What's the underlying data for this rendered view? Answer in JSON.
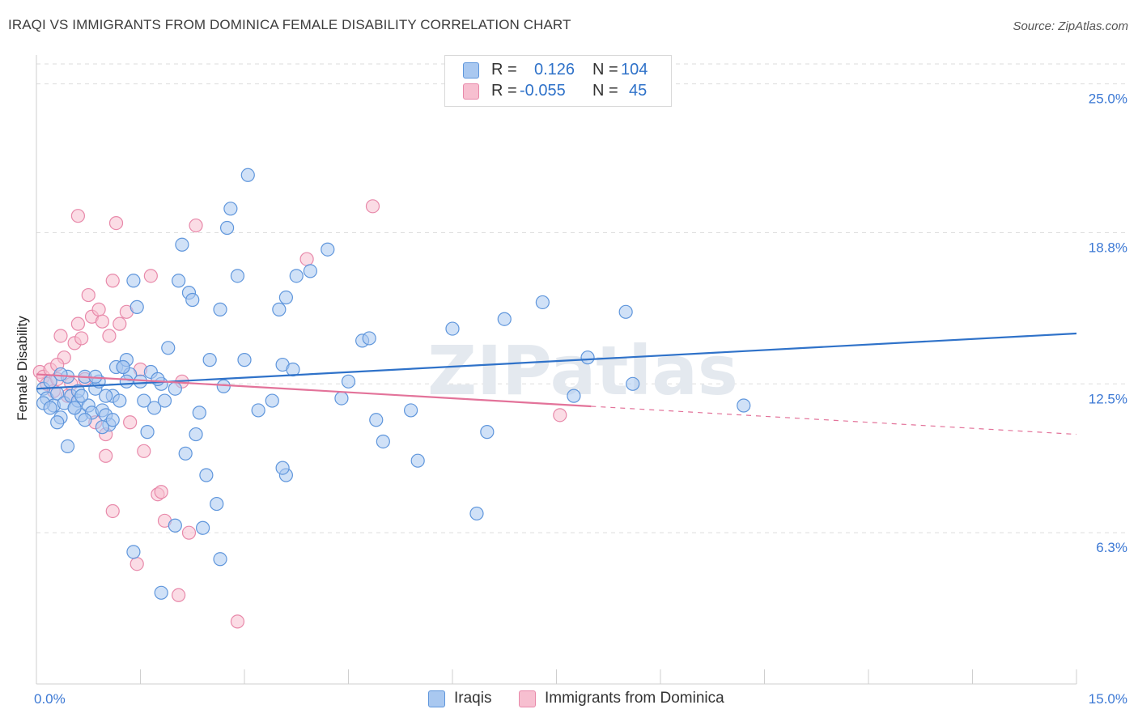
{
  "title": "IRAQI VS IMMIGRANTS FROM DOMINICA FEMALE DISABILITY CORRELATION CHART",
  "source": "Source: ZipAtlas.com",
  "watermark": "ZIPatlas",
  "legend": {
    "rows": [
      {
        "r_label": "R =",
        "r_value": "0.126",
        "n_label": "N =",
        "n_value": "104"
      },
      {
        "r_label": "R =",
        "r_value": "-0.055",
        "n_label": "N =",
        "n_value": "45"
      }
    ]
  },
  "bottom_legend": {
    "iraqis": "Iraqis",
    "dominica": "Immigrants from Dominica"
  },
  "colors": {
    "iraqis_fill": "#a9c8f0",
    "iraqis_edge": "#5f96dc",
    "iraqis_line": "#2f72c9",
    "dominica_fill": "#f7bfd0",
    "dominica_edge": "#e889aa",
    "dominica_line": "#e3739a",
    "tick_text": "#3b78d4",
    "grid": "#dddddd"
  },
  "chart_data": {
    "type": "scatter",
    "title": "IRAQI VS IMMIGRANTS FROM DOMINICA FEMALE DISABILITY CORRELATION CHART",
    "xlabel": "",
    "ylabel": "Female Disability",
    "xlim": [
      0,
      15
    ],
    "ylim": [
      0,
      26.2
    ],
    "x_tick_labels": [
      "0.0%",
      "15.0%"
    ],
    "y_ticks": [
      6.3,
      12.5,
      18.8,
      25.0
    ],
    "y_tick_labels": [
      "6.3%",
      "12.5%",
      "18.8%",
      "25.0%"
    ],
    "grid": "horizontal dashed",
    "legend_placement": "top-center",
    "series": [
      {
        "name": "Iraqis",
        "R": 0.126,
        "N": 104,
        "trend": {
          "x": [
            0,
            15
          ],
          "y": [
            12.3,
            14.6
          ],
          "dashed_from": null
        },
        "points": [
          [
            0.1,
            12.3
          ],
          [
            0.15,
            11.9
          ],
          [
            0.2,
            12.6
          ],
          [
            0.25,
            11.6
          ],
          [
            0.1,
            11.7
          ],
          [
            0.3,
            12.1
          ],
          [
            0.35,
            11.1
          ],
          [
            0.4,
            11.7
          ],
          [
            0.45,
            12.8
          ],
          [
            0.5,
            12.0
          ],
          [
            0.55,
            11.5
          ],
          [
            0.6,
            11.8
          ],
          [
            0.65,
            11.2
          ],
          [
            0.7,
            12.8
          ],
          [
            0.75,
            11.6
          ],
          [
            0.8,
            11.3
          ],
          [
            0.85,
            12.3
          ],
          [
            0.9,
            12.6
          ],
          [
            0.95,
            11.4
          ],
          [
            1.0,
            11.2
          ],
          [
            1.05,
            10.8
          ],
          [
            1.1,
            12.0
          ],
          [
            1.15,
            13.2
          ],
          [
            1.2,
            11.8
          ],
          [
            1.25,
            13.2
          ],
          [
            1.3,
            13.5
          ],
          [
            1.35,
            12.9
          ],
          [
            1.4,
            16.8
          ],
          [
            1.45,
            15.7
          ],
          [
            1.55,
            11.8
          ],
          [
            1.6,
            10.5
          ],
          [
            1.65,
            13.0
          ],
          [
            1.7,
            11.5
          ],
          [
            1.8,
            12.5
          ],
          [
            1.9,
            14.0
          ],
          [
            2.0,
            12.3
          ],
          [
            2.05,
            16.8
          ],
          [
            2.1,
            18.3
          ],
          [
            2.15,
            9.6
          ],
          [
            2.2,
            16.3
          ],
          [
            2.25,
            16.0
          ],
          [
            2.3,
            10.4
          ],
          [
            2.35,
            11.3
          ],
          [
            2.45,
            8.7
          ],
          [
            2.5,
            13.5
          ],
          [
            2.6,
            7.5
          ],
          [
            2.65,
            15.6
          ],
          [
            2.7,
            12.4
          ],
          [
            2.75,
            19.0
          ],
          [
            2.8,
            19.8
          ],
          [
            2.9,
            17.0
          ],
          [
            3.05,
            21.2
          ],
          [
            3.0,
            13.5
          ],
          [
            3.2,
            11.4
          ],
          [
            3.4,
            11.8
          ],
          [
            3.5,
            15.6
          ],
          [
            3.55,
            13.3
          ],
          [
            3.6,
            16.1
          ],
          [
            3.7,
            13.1
          ],
          [
            3.75,
            17.0
          ],
          [
            3.95,
            17.2
          ],
          [
            4.2,
            18.1
          ],
          [
            4.4,
            11.9
          ],
          [
            4.5,
            12.6
          ],
          [
            4.7,
            14.3
          ],
          [
            4.8,
            14.4
          ],
          [
            4.9,
            11.0
          ],
          [
            5.0,
            10.1
          ],
          [
            5.4,
            11.4
          ],
          [
            5.5,
            9.3
          ],
          [
            6.0,
            14.8
          ],
          [
            6.35,
            7.1
          ],
          [
            6.5,
            10.5
          ],
          [
            6.75,
            15.2
          ],
          [
            7.3,
            15.9
          ],
          [
            7.75,
            12.0
          ],
          [
            7.95,
            13.6
          ],
          [
            8.5,
            15.5
          ],
          [
            8.6,
            12.5
          ],
          [
            10.2,
            11.6
          ],
          [
            0.3,
            10.9
          ],
          [
            0.45,
            9.9
          ],
          [
            0.6,
            12.2
          ],
          [
            0.7,
            11.0
          ],
          [
            0.85,
            12.8
          ],
          [
            0.95,
            10.7
          ],
          [
            1.1,
            11.0
          ],
          [
            1.25,
            13.2
          ],
          [
            1.5,
            12.6
          ],
          [
            1.75,
            12.7
          ],
          [
            1.85,
            11.8
          ],
          [
            2.0,
            6.6
          ],
          [
            2.4,
            6.5
          ],
          [
            2.65,
            5.2
          ],
          [
            1.4,
            5.5
          ],
          [
            1.8,
            3.8
          ],
          [
            3.6,
            8.7
          ],
          [
            3.55,
            9.0
          ],
          [
            0.2,
            11.5
          ],
          [
            0.55,
            11.5
          ],
          [
            0.65,
            12.0
          ],
          [
            0.35,
            12.9
          ],
          [
            1.0,
            12.0
          ],
          [
            1.3,
            12.6
          ]
        ]
      },
      {
        "name": "Immigrants from Dominica",
        "R": -0.055,
        "N": 45,
        "trend": {
          "x": [
            0,
            15
          ],
          "y": [
            12.9,
            10.4
          ],
          "dashed_from": 8.0
        },
        "points": [
          [
            0.05,
            13.0
          ],
          [
            0.1,
            12.8
          ],
          [
            0.15,
            12.5
          ],
          [
            0.2,
            13.1
          ],
          [
            0.25,
            12.2
          ],
          [
            0.3,
            12.7
          ],
          [
            0.35,
            14.5
          ],
          [
            0.4,
            13.6
          ],
          [
            0.45,
            12.0
          ],
          [
            0.5,
            12.5
          ],
          [
            0.55,
            14.2
          ],
          [
            0.6,
            15.0
          ],
          [
            0.65,
            14.4
          ],
          [
            0.7,
            12.7
          ],
          [
            0.75,
            16.2
          ],
          [
            0.8,
            15.3
          ],
          [
            0.85,
            10.9
          ],
          [
            0.9,
            15.6
          ],
          [
            0.95,
            15.1
          ],
          [
            1.0,
            10.4
          ],
          [
            1.05,
            14.5
          ],
          [
            1.1,
            16.8
          ],
          [
            1.15,
            19.2
          ],
          [
            1.2,
            15.0
          ],
          [
            1.3,
            15.5
          ],
          [
            1.35,
            10.9
          ],
          [
            1.45,
            5.0
          ],
          [
            1.55,
            9.7
          ],
          [
            1.65,
            17.0
          ],
          [
            1.75,
            7.9
          ],
          [
            1.85,
            6.8
          ],
          [
            2.05,
            3.7
          ],
          [
            2.2,
            6.3
          ],
          [
            2.3,
            19.1
          ],
          [
            2.9,
            2.6
          ],
          [
            3.9,
            17.7
          ],
          [
            4.85,
            19.9
          ],
          [
            7.55,
            11.2
          ],
          [
            0.6,
            19.5
          ],
          [
            1.0,
            9.5
          ],
          [
            1.1,
            7.2
          ],
          [
            1.5,
            13.1
          ],
          [
            1.8,
            8.0
          ],
          [
            2.1,
            12.6
          ],
          [
            0.3,
            13.3
          ]
        ]
      }
    ]
  }
}
